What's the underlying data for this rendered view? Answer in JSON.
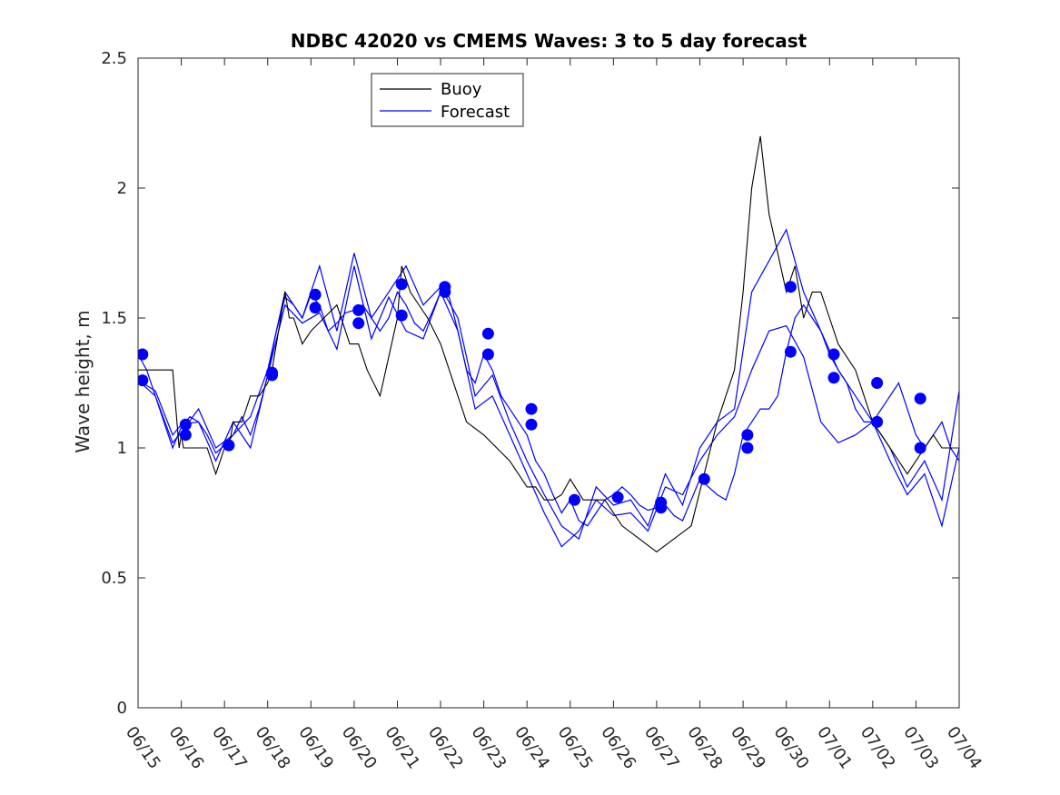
{
  "chart_data": {
    "type": "line",
    "title": "NDBC 42020 vs CMEMS Waves: 3 to 5 day forecast",
    "xlabel": "",
    "ylabel": "Wave height, m",
    "xlim": [
      "06/15",
      "07/04"
    ],
    "ylim": [
      0,
      2.5
    ],
    "yticks": [
      "0",
      "0.5",
      "1",
      "1.5",
      "2",
      "2.5"
    ],
    "xticks": [
      "06/15",
      "06/16",
      "06/17",
      "06/18",
      "06/19",
      "06/20",
      "06/21",
      "06/22",
      "06/23",
      "06/24",
      "06/25",
      "06/26",
      "06/27",
      "06/28",
      "06/29",
      "06/30",
      "07/01",
      "07/02",
      "07/03",
      "07/04"
    ],
    "grid": false,
    "legend_position": "top-left",
    "colors": {
      "buoy": "#000000",
      "forecast": "#0000ff"
    },
    "legend": [
      {
        "label": "Buoy",
        "color": "#000000"
      },
      {
        "label": "Forecast",
        "color": "#0000ff"
      }
    ],
    "series": [
      {
        "name": "Buoy",
        "color": "#000000",
        "x": [
          0,
          0.2,
          0.4,
          0.8,
          0.85,
          0.9,
          0.95,
          1.0,
          1.05,
          1.1,
          1.2,
          1.4,
          1.6,
          1.8,
          1.9,
          2.0,
          2.1,
          2.2,
          2.4,
          2.6,
          2.8,
          3.0,
          3.1,
          3.2,
          3.4,
          3.5,
          3.6,
          3.8,
          4.0,
          4.3,
          4.6,
          4.9,
          5.1,
          5.3,
          5.6,
          6.0,
          6.1,
          6.3,
          6.7,
          7.0,
          7.2,
          7.6,
          8.0,
          8.3,
          8.6,
          8.8,
          9.0,
          9.2,
          9.4,
          9.6,
          9.8,
          10.0,
          10.3,
          10.8,
          11.2,
          11.6,
          12.0,
          12.4,
          12.8,
          13.1,
          13.4,
          13.8,
          14.0,
          14.2,
          14.4,
          14.6,
          15.0,
          15.2,
          15.4,
          15.6,
          15.8,
          16.0,
          16.2,
          16.4,
          16.6,
          16.8,
          17.0,
          17.2,
          17.4,
          17.6,
          17.8,
          18.0,
          18.2,
          18.4,
          18.6,
          18.8,
          19.0
        ],
        "y": [
          1.3,
          1.3,
          1.3,
          1.3,
          1.2,
          1.1,
          1.0,
          1.05,
          1.0,
          1.0,
          1.0,
          1.0,
          1.0,
          0.9,
          0.95,
          1.0,
          1.0,
          1.1,
          1.1,
          1.2,
          1.2,
          1.25,
          1.3,
          1.4,
          1.6,
          1.5,
          1.5,
          1.4,
          1.45,
          1.5,
          1.55,
          1.4,
          1.4,
          1.3,
          1.2,
          1.5,
          1.7,
          1.6,
          1.5,
          1.4,
          1.3,
          1.1,
          1.05,
          1.0,
          0.95,
          0.9,
          0.85,
          0.85,
          0.8,
          0.8,
          0.82,
          0.88,
          0.8,
          0.8,
          0.7,
          0.65,
          0.6,
          0.65,
          0.7,
          0.9,
          1.1,
          1.3,
          1.6,
          2.0,
          2.2,
          1.9,
          1.6,
          1.7,
          1.5,
          1.6,
          1.6,
          1.5,
          1.4,
          1.35,
          1.3,
          1.2,
          1.1,
          1.05,
          1.0,
          0.95,
          0.9,
          0.95,
          1.0,
          1.05,
          1.0,
          1.0,
          1.0
        ]
      },
      {
        "name": "Forecast",
        "color": "#0000ff",
        "x": [
          0,
          0.2,
          0.4,
          0.6,
          0.8,
          1.0,
          1.2,
          1.4,
          1.6,
          1.8,
          2.0,
          2.2,
          2.4,
          2.6,
          2.8,
          3.0,
          3.2,
          3.4,
          3.6,
          3.8,
          4.0,
          4.2,
          4.4,
          4.6,
          4.8,
          5.0,
          5.2,
          5.4,
          5.6,
          5.8,
          6.0,
          6.2,
          6.4,
          6.6,
          6.8,
          7.0,
          7.2,
          7.4,
          7.6,
          7.8,
          8.0,
          8.2,
          8.4,
          8.6,
          8.8,
          9.0,
          9.2,
          9.4,
          9.6,
          9.8,
          10.0,
          10.2,
          10.4,
          10.6,
          10.8,
          11.0,
          11.2,
          11.4,
          11.6,
          11.8,
          12.0,
          12.2,
          12.4,
          12.6,
          12.8,
          13.0,
          13.2,
          13.4,
          13.6,
          13.8,
          14.0,
          14.2,
          14.4,
          14.6,
          14.8,
          15.0,
          15.2,
          15.4,
          15.6,
          15.8,
          16.0,
          16.2,
          16.4,
          16.6,
          16.8,
          17.0,
          17.2,
          17.4,
          17.6,
          17.8,
          18.0,
          18.2,
          18.4,
          18.6,
          18.8,
          19.0
        ],
        "y": [
          1.36,
          1.3,
          1.2,
          1.1,
          1.0,
          1.08,
          1.12,
          1.1,
          1.05,
          0.98,
          1.01,
          1.05,
          1.12,
          1.05,
          1.15,
          1.28,
          1.45,
          1.58,
          1.55,
          1.5,
          1.59,
          1.55,
          1.45,
          1.48,
          1.52,
          1.53,
          1.55,
          1.5,
          1.45,
          1.5,
          1.6,
          1.55,
          1.48,
          1.45,
          1.52,
          1.6,
          1.58,
          1.45,
          1.3,
          1.25,
          1.36,
          1.3,
          1.2,
          1.15,
          1.1,
          1.05,
          0.95,
          0.9,
          0.82,
          0.75,
          0.8,
          0.72,
          0.7,
          0.75,
          0.8,
          0.82,
          0.85,
          0.82,
          0.78,
          0.76,
          0.77,
          0.78,
          0.74,
          0.72,
          0.8,
          0.88,
          0.85,
          0.82,
          0.8,
          0.9,
          1.05,
          1.1,
          1.15,
          1.15,
          1.2,
          1.37,
          1.5,
          1.55,
          1.5,
          1.45,
          1.36,
          1.3,
          1.25,
          1.15,
          1.1,
          1.1,
          1.15,
          1.2,
          1.25,
          1.15,
          1.05,
          1.0,
          1.05,
          1.1,
          1.0,
          0.95
        ]
      }
    ],
    "forecast_extra_traces": [
      {
        "x": [
          0,
          0.4,
          0.8,
          1.0,
          1.4,
          1.8,
          2.2,
          2.6,
          3.0,
          3.4,
          3.8,
          4.2,
          4.6,
          5.0,
          5.4,
          5.8,
          6.2,
          6.6,
          7.0,
          7.4,
          7.8,
          8.2,
          8.6,
          9.0,
          9.4,
          9.8,
          10.2,
          10.6,
          11.0,
          11.4,
          11.8,
          12.2,
          12.6,
          13.0,
          13.4,
          13.8,
          14.2,
          14.6,
          15.0,
          15.4,
          15.8,
          16.2,
          16.6,
          17.0,
          17.4,
          17.8,
          18.2,
          18.6,
          19.0
        ],
        "y": [
          1.26,
          1.2,
          1.02,
          1.06,
          1.15,
          1.0,
          1.05,
          1.12,
          1.3,
          1.6,
          1.5,
          1.7,
          1.45,
          1.75,
          1.5,
          1.6,
          1.7,
          1.55,
          1.62,
          1.5,
          1.2,
          1.28,
          1.1,
          0.95,
          0.82,
          0.7,
          0.65,
          0.85,
          0.78,
          0.8,
          0.7,
          0.9,
          0.78,
          1.0,
          1.1,
          1.15,
          1.6,
          1.72,
          1.84,
          1.6,
          1.45,
          1.3,
          1.2,
          1.1,
          1.0,
          0.85,
          0.95,
          0.8,
          1.22
        ]
      },
      {
        "x": [
          0,
          0.4,
          0.8,
          1.0,
          1.4,
          1.8,
          2.2,
          2.6,
          3.0,
          3.4,
          3.8,
          4.2,
          4.6,
          5.0,
          5.4,
          5.8,
          6.2,
          6.6,
          7.0,
          7.4,
          7.8,
          8.2,
          8.6,
          9.0,
          9.4,
          9.8,
          10.2,
          10.6,
          11.0,
          11.4,
          11.8,
          12.2,
          12.6,
          13.0,
          13.4,
          13.8,
          14.2,
          14.6,
          15.0,
          15.4,
          15.8,
          16.2,
          16.6,
          17.0,
          17.4,
          17.8,
          18.2,
          18.6,
          19.0
        ],
        "y": [
          1.26,
          1.22,
          1.05,
          1.09,
          1.1,
          0.95,
          1.1,
          1.0,
          1.28,
          1.55,
          1.48,
          1.52,
          1.38,
          1.7,
          1.42,
          1.58,
          1.45,
          1.42,
          1.6,
          1.45,
          1.15,
          1.2,
          1.05,
          0.9,
          0.75,
          0.62,
          0.68,
          0.8,
          0.74,
          0.75,
          0.68,
          0.85,
          0.82,
          0.95,
          1.05,
          1.12,
          1.3,
          1.45,
          1.47,
          1.35,
          1.1,
          1.02,
          1.05,
          1.1,
          0.95,
          0.82,
          0.9,
          0.7,
          1.0
        ]
      }
    ],
    "forecast_markers": {
      "x": [
        0.1,
        0.1,
        1.1,
        1.1,
        2.1,
        3.1,
        3.1,
        4.1,
        4.1,
        5.1,
        5.1,
        6.1,
        6.1,
        7.1,
        7.1,
        8.1,
        8.1,
        9.1,
        9.1,
        10.1,
        11.1,
        12.1,
        12.1,
        13.1,
        14.1,
        14.1,
        15.1,
        15.1,
        16.1,
        16.1,
        17.1,
        17.1,
        18.1,
        18.1
      ],
      "y": [
        1.36,
        1.26,
        1.09,
        1.05,
        1.01,
        1.29,
        1.28,
        1.59,
        1.54,
        1.53,
        1.48,
        1.63,
        1.51,
        1.62,
        1.6,
        1.44,
        1.36,
        1.15,
        1.09,
        0.8,
        0.81,
        0.79,
        0.77,
        0.88,
        1.05,
        1.0,
        1.62,
        1.37,
        1.36,
        1.27,
        1.25,
        1.1,
        1.19,
        1.0
      ]
    }
  }
}
